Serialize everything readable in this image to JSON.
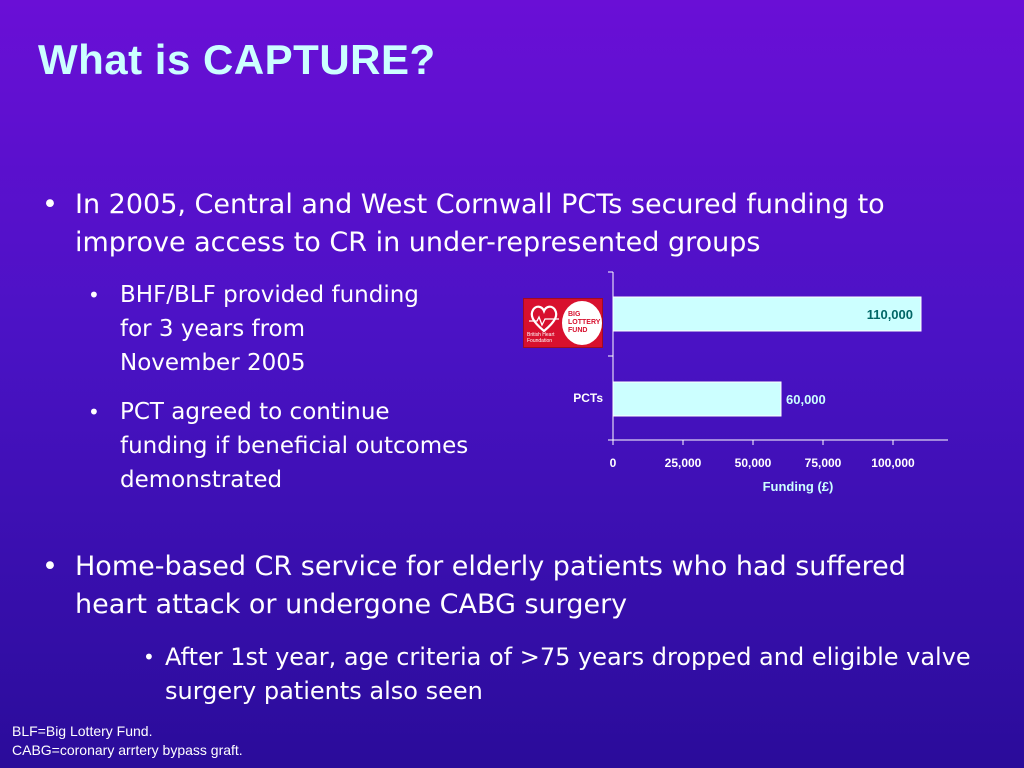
{
  "slide": {
    "title": "What is CAPTURE?",
    "bullet1": "In 2005, Central and West Cornwall PCTs secured funding to improve access to CR in under-represented groups",
    "sub1": "BHF/BLF provided funding for 3 years from November 2005",
    "sub2": "PCT agreed to continue funding if beneficial outcomes demonstrated",
    "bullet2": "Home-based CR service for elderly patients who had suffered heart attack or undergone CABG surgery",
    "sub3": "After 1st year, age criteria of >75 years dropped and eligible valve surgery patients also seen",
    "footnote1": "BLF=Big Lottery Fund.",
    "footnote2": "CABG=coronary arrtery bypass graft.",
    "bullet_glyph": "•"
  },
  "logo": {
    "blf_text_1": "BIG",
    "blf_text_2": "LOTTERY",
    "blf_text_3": "FUND",
    "bhf_text_1": "British Heart",
    "bhf_text_2": "Foundation"
  },
  "colors": {
    "title": "#ccffff",
    "bar_fill": "#ccffff",
    "label_dark": "#006666",
    "label_light": "#ccffff",
    "axis": "#ffffff"
  },
  "chart_data": {
    "type": "bar",
    "orientation": "horizontal",
    "categories": [
      "",
      "PCTs"
    ],
    "values": [
      110000,
      60000
    ],
    "value_labels": [
      "110,000",
      "60,000"
    ],
    "xlabel": "Funding (£)",
    "ylabel": "",
    "xlim": [
      0,
      120000
    ],
    "xticks": [
      0,
      25000,
      50000,
      75000,
      100000
    ],
    "xtick_labels": [
      "0",
      "25,000",
      "50,000",
      "75,000",
      "100,000"
    ],
    "grid": false,
    "legend": "none"
  }
}
